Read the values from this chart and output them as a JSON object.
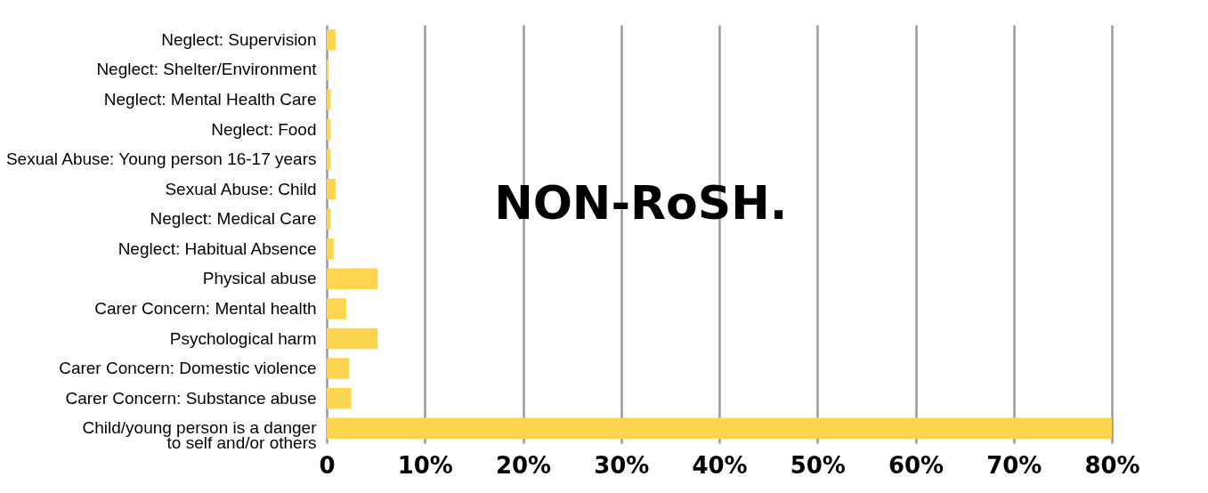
{
  "chart_data": {
    "type": "bar",
    "orientation": "horizontal",
    "title": "NON-RoSH.",
    "categories": [
      "Neglect: Supervision",
      "Neglect: Shelter/Environment",
      "Neglect: Mental Health Care",
      "Neglect: Food",
      "Sexual Abuse: Young person 16-17 years",
      "Sexual Abuse: Child",
      "Neglect: Medical Care",
      "Neglect: Habitual Absence",
      "Physical abuse",
      "Carer Concern: Mental health",
      "Psychological harm",
      "Carer Concern: Domestic violence",
      "Carer Concern: Substance abuse",
      "Child/young person is a danger\nto self and/or others"
    ],
    "values": [
      0.9,
      0.2,
      0.4,
      0.4,
      0.4,
      0.9,
      0.4,
      0.7,
      5.2,
      2.0,
      5.2,
      2.3,
      2.5,
      80
    ],
    "color": "#ffd54f",
    "xlim": [
      0,
      80
    ],
    "xticks": [
      {
        "value": 0,
        "label": "0"
      },
      {
        "value": 10,
        "label": "10%"
      },
      {
        "value": 20,
        "label": "20%"
      },
      {
        "value": 30,
        "label": "30%"
      },
      {
        "value": 40,
        "label": "40%"
      },
      {
        "value": 50,
        "label": "50%"
      },
      {
        "value": 60,
        "label": "60%"
      },
      {
        "value": 70,
        "label": "70%"
      },
      {
        "value": 80,
        "label": "80%"
      }
    ],
    "grid": "x"
  }
}
